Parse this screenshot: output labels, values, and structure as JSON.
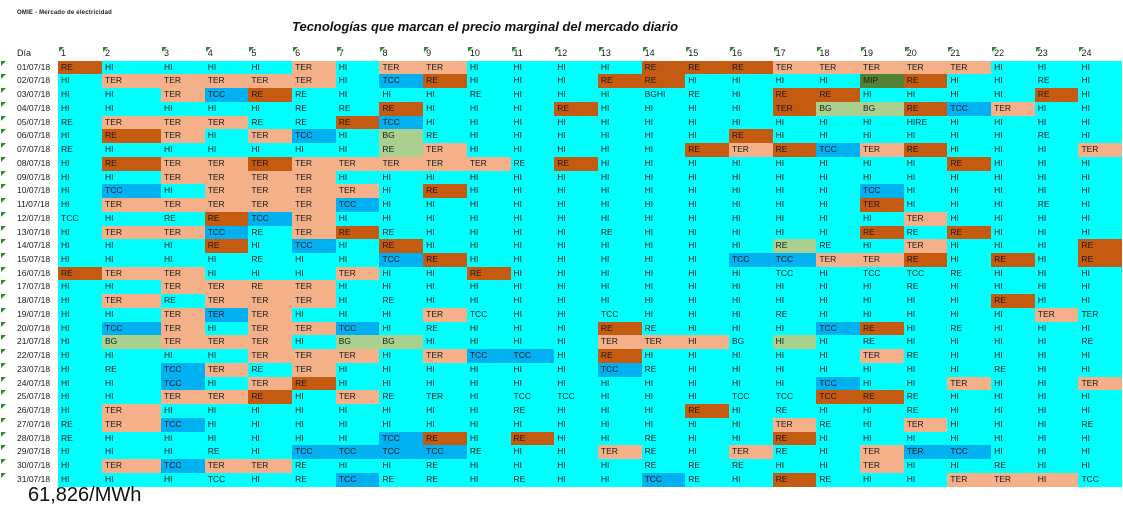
{
  "brand": "OMIE - Mercado de electricidad",
  "title": "Tecnologías que marcan el precio marginal del mercado diario",
  "header": {
    "day_label": "Día",
    "hours": [
      "1",
      "2",
      "3",
      "4",
      "5",
      "6",
      "7",
      "8",
      "9",
      "10",
      "11",
      "12",
      "13",
      "14",
      "15",
      "16",
      "17",
      "18",
      "19",
      "20",
      "21",
      "22",
      "23",
      "24"
    ]
  },
  "fill_colors": {
    "c": "#00ffff",
    "t": "#f4b088",
    "r": "#c55a11",
    "b": "#00b0f0",
    "g": "#a9d08e",
    "m": "#548235"
  },
  "rows": [
    {
      "date": "01/07/18",
      "fill": "rcccctcttccccrrrtttttccc",
      "values": [
        "RE",
        "HI",
        "HI",
        "HI",
        "HI",
        "TER",
        "HI",
        "TER",
        "TER",
        "HI",
        "HI",
        "HI",
        "HI",
        "RE",
        "RE",
        "RE",
        "TER",
        "TER",
        "TER",
        "TER",
        "TER",
        "HI",
        "HI",
        "HI"
      ]
    },
    {
      "date": "02/07/18",
      "fill": "cttttcbrcccrrccccmrcccc",
      "values": [
        "HI",
        "TER",
        "TER",
        "TER",
        "TER",
        "TER",
        "HI",
        "TCC",
        "RE",
        "HI",
        "HI",
        "HI",
        "RE",
        "RE",
        "HI",
        "HI",
        "HI",
        "HI",
        "MIP",
        "RE",
        "HI",
        "HI",
        "RE",
        "HI"
      ]
    },
    {
      "date": "03/07/18",
      "fill": "cctbrccccccccccccrrccccrc",
      "values": [
        "HI",
        "HI",
        "TER",
        "TCC",
        "RE",
        "RE",
        "HI",
        "HI",
        "HI",
        "RE",
        "HI",
        "HI",
        "HI",
        "BGHI",
        "RE",
        "HI",
        "RE",
        "RE",
        "HI",
        "HI",
        "HI",
        "HI",
        "RE",
        "HI"
      ]
    },
    {
      "date": "04/07/18",
      "fill": "cccccccrcccrccccrggrbtcc",
      "values": [
        "HI",
        "HI",
        "HI",
        "HI",
        "HI",
        "RE",
        "RE",
        "RE",
        "HI",
        "HI",
        "HI",
        "RE",
        "HI",
        "HI",
        "HI",
        "HI",
        "TER",
        "BG",
        "BG",
        "RE",
        "TCC",
        "TER",
        "HI",
        "HI"
      ]
    },
    {
      "date": "05/07/18",
      "fill": "ctttccrbcccccccccccccccc",
      "values": [
        "RE",
        "TER",
        "TER",
        "TER",
        "RE",
        "RE",
        "RE",
        "TCC",
        "HI",
        "HI",
        "HI",
        "HI",
        "HI",
        "HI",
        "HI",
        "HI",
        "HI",
        "HI",
        "HI",
        "HIRE",
        "HI",
        "HI",
        "HI",
        "HI"
      ]
    },
    {
      "date": "06/07/18",
      "fill": "crtctbcgcccccccrcccccccc",
      "values": [
        "HI",
        "RE",
        "TER",
        "HI",
        "TER",
        "TCC",
        "HI",
        "BG",
        "RE",
        "HI",
        "HI",
        "HI",
        "HI",
        "HI",
        "HI",
        "RE",
        "HI",
        "HI",
        "HI",
        "HI",
        "HI",
        "HI",
        "RE",
        "HI"
      ]
    },
    {
      "date": "07/07/18",
      "fill": "cccccccgtcccccrtrbtrccct",
      "values": [
        "RE",
        "HI",
        "HI",
        "HI",
        "HI",
        "HI",
        "HI",
        "RE",
        "TER",
        "HI",
        "HI",
        "HI",
        "HI",
        "HI",
        "RE",
        "TER",
        "RE",
        "TCC",
        "TER",
        "RE",
        "HI",
        "HI",
        "HI",
        "TER"
      ]
    },
    {
      "date": "08/07/18",
      "fill": "crttrtttttcrccccccccrccc",
      "values": [
        "HI",
        "RE",
        "TER",
        "TER",
        "TER",
        "TER",
        "TER",
        "TER",
        "TER",
        "TER",
        "RE",
        "RE",
        "HI",
        "HI",
        "HI",
        "HI",
        "HI",
        "HI",
        "HI",
        "HI",
        "RE",
        "HI",
        "HI",
        "HI"
      ]
    },
    {
      "date": "09/07/18",
      "fill": "cctttt",
      "values": [
        "HI",
        "HI",
        "TER",
        "TER",
        "TER",
        "TER",
        "HI",
        "HI",
        "HI",
        "HI",
        "HI",
        "HI",
        "HI",
        "HI",
        "HI",
        "HI",
        "HI",
        "HI",
        "HI",
        "HI",
        "HI",
        "HI",
        "HI",
        "HI"
      ]
    },
    {
      "date": "10/07/18",
      "fill": "cbcttttcrcccccccccbccccc",
      "values": [
        "HI",
        "TCC",
        "HI",
        "TER",
        "TER",
        "TER",
        "TER",
        "HI",
        "RE",
        "HI",
        "HI",
        "HI",
        "HI",
        "HI",
        "HI",
        "HI",
        "HI",
        "HI",
        "TCC",
        "HI",
        "HI",
        "HI",
        "HI",
        "HI"
      ]
    },
    {
      "date": "11/07/18",
      "fill": "ctttttbcccccccccccrccccc",
      "values": [
        "HI",
        "TER",
        "TER",
        "TER",
        "TER",
        "TER",
        "TCC",
        "HI",
        "HI",
        "HI",
        "HI",
        "HI",
        "HI",
        "HI",
        "HI",
        "HI",
        "HI",
        "HI",
        "TER",
        "HI",
        "HI",
        "HI",
        "RE",
        "HI"
      ]
    },
    {
      "date": "12/07/18",
      "fill": "cccrbtccccccccccccctcccc",
      "values": [
        "TCC",
        "HI",
        "RE",
        "RE",
        "TCC",
        "TER",
        "HI",
        "HI",
        "HI",
        "HI",
        "HI",
        "HI",
        "HI",
        "HI",
        "HI",
        "HI",
        "HI",
        "HI",
        "HI",
        "TER",
        "HI",
        "HI",
        "HI",
        "HI"
      ]
    },
    {
      "date": "13/07/18",
      "fill": "cttbctrcccccccccccrcrccc",
      "values": [
        "HI",
        "TER",
        "TER",
        "TCC",
        "RE",
        "TER",
        "RE",
        "RE",
        "HI",
        "HI",
        "HI",
        "HI",
        "RE",
        "HI",
        "HI",
        "HI",
        "HI",
        "HI",
        "RE",
        "RE",
        "RE",
        "HI",
        "HI",
        "HI"
      ]
    },
    {
      "date": "14/07/18",
      "fill": "cccrcbcrccccccccgcctcccr",
      "values": [
        "HI",
        "HI",
        "HI",
        "RE",
        "HI",
        "TCC",
        "HI",
        "RE",
        "HI",
        "HI",
        "HI",
        "HI",
        "HI",
        "HI",
        "HI",
        "HI",
        "RE",
        "RE",
        "HI",
        "TER",
        "HI",
        "HI",
        "HI",
        "RE"
      ]
    },
    {
      "date": "15/07/18",
      "fill": "cccccccbrccccccbbttrcrcr",
      "values": [
        "HI",
        "HI",
        "HI",
        "HI",
        "RE",
        "HI",
        "HI",
        "TCC",
        "RE",
        "HI",
        "HI",
        "HI",
        "HI",
        "HI",
        "HI",
        "TCC",
        "TCC",
        "TER",
        "TER",
        "RE",
        "HI",
        "RE",
        "HI",
        "RE"
      ]
    },
    {
      "date": "16/07/18",
      "fill": "rttccctccrcccccccccccccc",
      "values": [
        "RE",
        "TER",
        "TER",
        "HI",
        "HI",
        "HI",
        "TER",
        "HI",
        "HI",
        "RE",
        "HI",
        "HI",
        "HI",
        "HI",
        "HI",
        "HI",
        "TCC",
        "HI",
        "TCC",
        "TCC",
        "RE",
        "HI",
        "HI",
        "HI"
      ]
    },
    {
      "date": "17/07/18",
      "fill": "cctttt",
      "values": [
        "HI",
        "HI",
        "TER",
        "TER",
        "RE",
        "TER",
        "HI",
        "HI",
        "HI",
        "HI",
        "HI",
        "HI",
        "HI",
        "HI",
        "HI",
        "HI",
        "HI",
        "HI",
        "HI",
        "RE",
        "HI",
        "HI",
        "HI",
        "HI"
      ]
    },
    {
      "date": "18/07/18",
      "fill": "ctcttt",
      "values": [
        "HI",
        "TER",
        "RE",
        "TER",
        "TER",
        "TER",
        "HI",
        "RE",
        "HI",
        "HI",
        "HI",
        "HI",
        "HI",
        "HI",
        "HI",
        "HI",
        "HI",
        "HI",
        "HI",
        "HI",
        "HI",
        "RE",
        "HI",
        "HI"
      ],
      "extra_fill": {
        "21": "r"
      }
    },
    {
      "date": "19/07/18",
      "fill": "cctbtccctccccccccccccctc",
      "values": [
        "HI",
        "HI",
        "TER",
        "TER",
        "TER",
        "HI",
        "HI",
        "HI",
        "TER",
        "TCC",
        "HI",
        "HI",
        "TCC",
        "HI",
        "HI",
        "HI",
        "RE",
        "HI",
        "HI",
        "HI",
        "HI",
        "HI",
        "TER",
        "TER"
      ]
    },
    {
      "date": "20/07/18",
      "fill": "cbtcttbcccccrccccbrccccc",
      "values": [
        "HI",
        "TCC",
        "TER",
        "HI",
        "TER",
        "TER",
        "TCC",
        "HI",
        "RE",
        "HI",
        "HI",
        "HI",
        "RE",
        "RE",
        "HI",
        "HI",
        "HI",
        "TCC",
        "RE",
        "HI",
        "RE",
        "HI",
        "HI",
        "HI"
      ]
    },
    {
      "date": "21/07/18",
      "fill": "cgtttcggcccctttcgcccccccc",
      "values": [
        "HI",
        "BG",
        "TER",
        "TER",
        "TER",
        "HI",
        "BG",
        "BG",
        "HI",
        "HI",
        "HI",
        "HI",
        "TER",
        "TER",
        "HI",
        "BG",
        "HI",
        "HI",
        "RE",
        "HI",
        "HI",
        "HI",
        "HI",
        "RE"
      ]
    },
    {
      "date": "22/07/18",
      "fill": "cccctttctbbcrcccccctccccc",
      "values": [
        "HI",
        "HI",
        "HI",
        "HI",
        "TER",
        "TER",
        "TER",
        "HI",
        "TER",
        "TCC",
        "TCC",
        "HI",
        "RE",
        "HI",
        "HI",
        "HI",
        "HI",
        "HI",
        "TER",
        "RE",
        "HI",
        "HI",
        "HI",
        "HI"
      ]
    },
    {
      "date": "23/07/18",
      "fill": "ccbtctccccccbccccccccccc",
      "values": [
        "HI",
        "RE",
        "TCC",
        "TER",
        "RE",
        "TER",
        "HI",
        "HI",
        "HI",
        "HI",
        "HI",
        "HI",
        "TCC",
        "RE",
        "HI",
        "HI",
        "HI",
        "HI",
        "HI",
        "HI",
        "HI",
        "RE",
        "HI",
        "HI"
      ]
    },
    {
      "date": "24/07/18",
      "fill": "ccbctrcccccccccccbcctcct",
      "values": [
        "HI",
        "HI",
        "TCC",
        "HI",
        "TER",
        "RE",
        "HI",
        "HI",
        "HI",
        "HI",
        "HI",
        "HI",
        "HI",
        "HI",
        "HI",
        "HI",
        "HI",
        "TCC",
        "HI",
        "HI",
        "TER",
        "HI",
        "HI",
        "TER"
      ]
    },
    {
      "date": "25/07/18",
      "fill": "ccttrctccccccccccccrrcccc",
      "values": [
        "HI",
        "HI",
        "TER",
        "TER",
        "RE",
        "HI",
        "TER",
        "RE",
        "TER",
        "HI",
        "TCC",
        "TCC",
        "HI",
        "HI",
        "HI",
        "TCC",
        "TCC",
        "TCC",
        "RE",
        "RE",
        "HI",
        "HI",
        "HI",
        "HI"
      ]
    },
    {
      "date": "26/07/18",
      "fill": "ctccccccccccccrccccccccc",
      "values": [
        "HI",
        "TER",
        "HI",
        "HI",
        "HI",
        "HI",
        "HI",
        "HI",
        "HI",
        "HI",
        "RE",
        "HI",
        "HI",
        "HI",
        "RE",
        "HI",
        "RE",
        "HI",
        "HI",
        "RE",
        "HI",
        "HI",
        "HI",
        "HI"
      ]
    },
    {
      "date": "27/07/18",
      "fill": "ctbccccccccccccctcctcccc",
      "values": [
        "RE",
        "TER",
        "TCC",
        "HI",
        "HI",
        "HI",
        "HI",
        "HI",
        "HI",
        "HI",
        "HI",
        "HI",
        "HI",
        "HI",
        "HI",
        "HI",
        "TER",
        "RE",
        "HI",
        "TER",
        "HI",
        "HI",
        "HI",
        "RE"
      ]
    },
    {
      "date": "28/07/18",
      "fill": "cccccccbrcrcccccrccccccc",
      "values": [
        "RE",
        "HI",
        "HI",
        "HI",
        "HI",
        "HI",
        "HI",
        "TCC",
        "RE",
        "HI",
        "RE",
        "HI",
        "HI",
        "RE",
        "HI",
        "HI",
        "RE",
        "HI",
        "HI",
        "HI",
        "HI",
        "HI",
        "HI",
        "HI"
      ]
    },
    {
      "date": "29/07/18",
      "fill": "cccccbbbbccctcctcctbbccc",
      "values": [
        "HI",
        "HI",
        "HI",
        "RE",
        "HI",
        "TCC",
        "TCC",
        "TCC",
        "TCC",
        "RE",
        "HI",
        "HI",
        "TER",
        "RE",
        "HI",
        "TER",
        "RE",
        "HI",
        "TER",
        "TER",
        "TCC",
        "HI",
        "HI",
        "HI"
      ]
    },
    {
      "date": "30/07/18",
      "fill": "ctbttccccccccccccctccccc",
      "values": [
        "HI",
        "TER",
        "TCC",
        "TER",
        "TER",
        "RE",
        "HI",
        "HI",
        "RE",
        "HI",
        "HI",
        "HI",
        "HI",
        "RE",
        "RE",
        "RE",
        "HI",
        "HI",
        "TER",
        "HI",
        "HI",
        "RE",
        "HI",
        "HI"
      ]
    },
    {
      "date": "31/07/18",
      "fill": "ccccccbccccccbccrccc ttcb",
      "values": [
        "HI",
        "HI",
        "HI",
        "TCC",
        "HI",
        "RE",
        "TCC",
        "RE",
        "RE",
        "HI",
        "RE",
        "HI",
        "HI",
        "TCC",
        "RE",
        "HI",
        "RE",
        "RE",
        "HI",
        "HI",
        "TER",
        "TER",
        "HI",
        "TCC"
      ]
    }
  ],
  "footer_text": "61,826/MWh"
}
